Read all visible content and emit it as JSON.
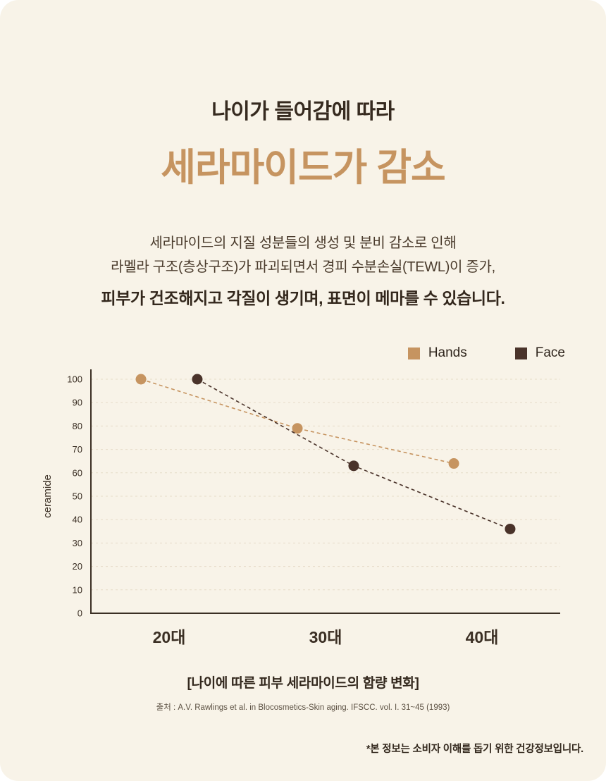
{
  "page": {
    "background_color": "#f8f3e8",
    "accent_color": "#c69460",
    "text_color": "#362a1f"
  },
  "header": {
    "subtitle": "나이가 들어감에 따라",
    "title": "세라마이드가 감소",
    "desc_line1": "세라마이드의 지질 성분들의 생성 및 분비 감소로 인해",
    "desc_line2": "라멜라 구조(층상구조)가 파괴되면서 경피 수분손실(TEWL)이 증가,",
    "desc_bold": "피부가 건조해지고 각질이 생기며, 표면이 메마를 수 있습니다."
  },
  "chart_data": {
    "type": "line",
    "title": "나이에 따른 피부 세라마이드의 함량 변화",
    "categories": [
      "20대",
      "30대",
      "40대"
    ],
    "series": [
      {
        "name": "Hands",
        "color": "#c69460",
        "values": [
          100,
          79,
          64
        ],
        "x_offset": -0.18
      },
      {
        "name": "Face",
        "color": "#4a332a",
        "values": [
          100,
          63,
          36
        ],
        "x_offset": 0.18
      }
    ],
    "ylabel": "ceramide",
    "xlabel": "",
    "ylim": [
      0,
      100
    ],
    "ytick_step": 10,
    "grid": true,
    "grid_style": "dashed",
    "line_style": "dashed",
    "legend_position": "top-right",
    "grid_color": "#e6dcc8",
    "axis_color": "#3b2f24"
  },
  "caption": {
    "title": "[나이에 따른 피부 세라마이드의 함량 변화]",
    "source": "출처 : A.V. Rawlings et al. in Blocosmetics-Skin aging. IFSCC. vol. I. 31~45 (1993)"
  },
  "footer": {
    "note": "*본 정보는 소비자 이해를 돕기 위한 건강정보입니다."
  }
}
